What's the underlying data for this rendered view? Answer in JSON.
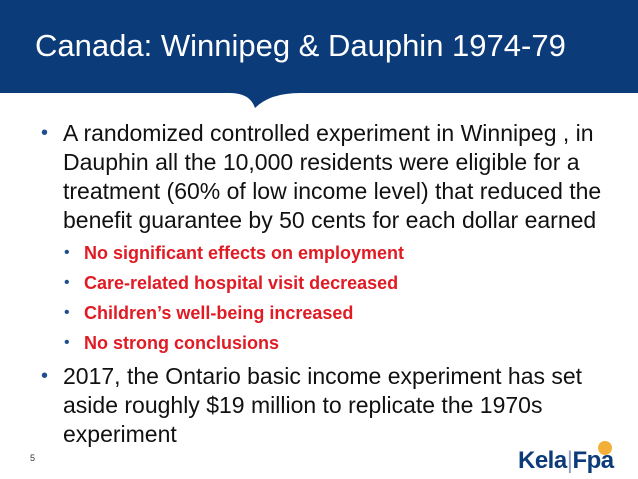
{
  "slide": {
    "title": "Canada: Winnipeg & Dauphin 1974-79",
    "page_number": "5"
  },
  "bullets": [
    {
      "text": "A randomized controlled experiment in Winnipeg , in Dauphin all the 10,000 residents were eligible for a treatment (60% of low income level) that reduced the benefit guarantee by 50 cents for each dollar earned",
      "sub": [
        "No significant effects on employment",
        "Care-related hospital visit decreased",
        "Children’s well-being increased",
        "No strong conclusions"
      ]
    },
    {
      "text": "2017, the Ontario basic income experiment has set aside roughly $19 million to replicate the 1970s experiment"
    }
  ],
  "logo": {
    "left": "Kela",
    "separator": "|",
    "right": "Fpa",
    "badge_text": ""
  },
  "colors": {
    "header": "#0c3b7a",
    "title_text": "#ffffff",
    "body_text": "#111111",
    "highlight": "#e01b24",
    "bullet": "#1f4e8f"
  }
}
